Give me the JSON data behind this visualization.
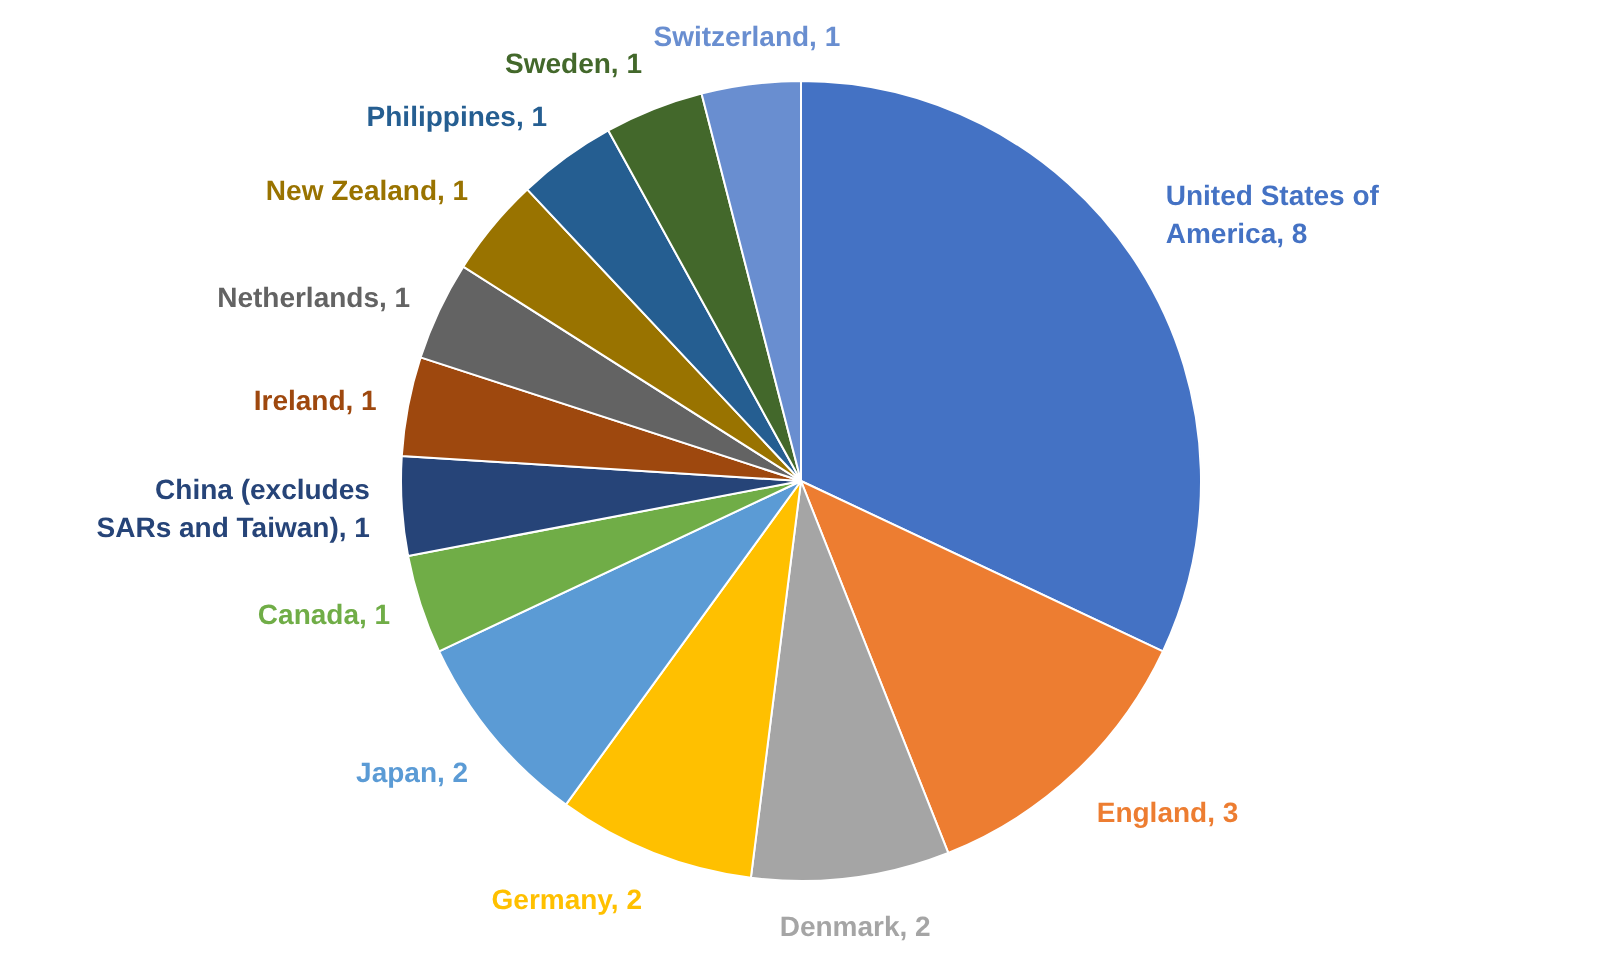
{
  "chart_data": {
    "type": "pie",
    "categories": [
      "United States of America, 8",
      "England, 3",
      "Denmark, 2",
      "Germany, 2",
      "Japan, 2",
      "Canada, 1",
      "China (excludes SARs and Taiwan), 1",
      "Ireland, 1",
      "Netherlands, 1",
      "New Zealand, 1",
      "Philippines, 1",
      "Sweden, 1",
      "Switzerland, 1"
    ],
    "values": [
      8,
      3,
      2,
      2,
      2,
      1,
      1,
      1,
      1,
      1,
      1,
      1,
      1
    ],
    "colors": [
      "#4472c4",
      "#ed7d31",
      "#a5a5a5",
      "#ffc000",
      "#5b9bd5",
      "#70ad47",
      "#264478",
      "#9e480e",
      "#636363",
      "#997300",
      "#255e91",
      "#43682b",
      "#698ed0"
    ]
  }
}
